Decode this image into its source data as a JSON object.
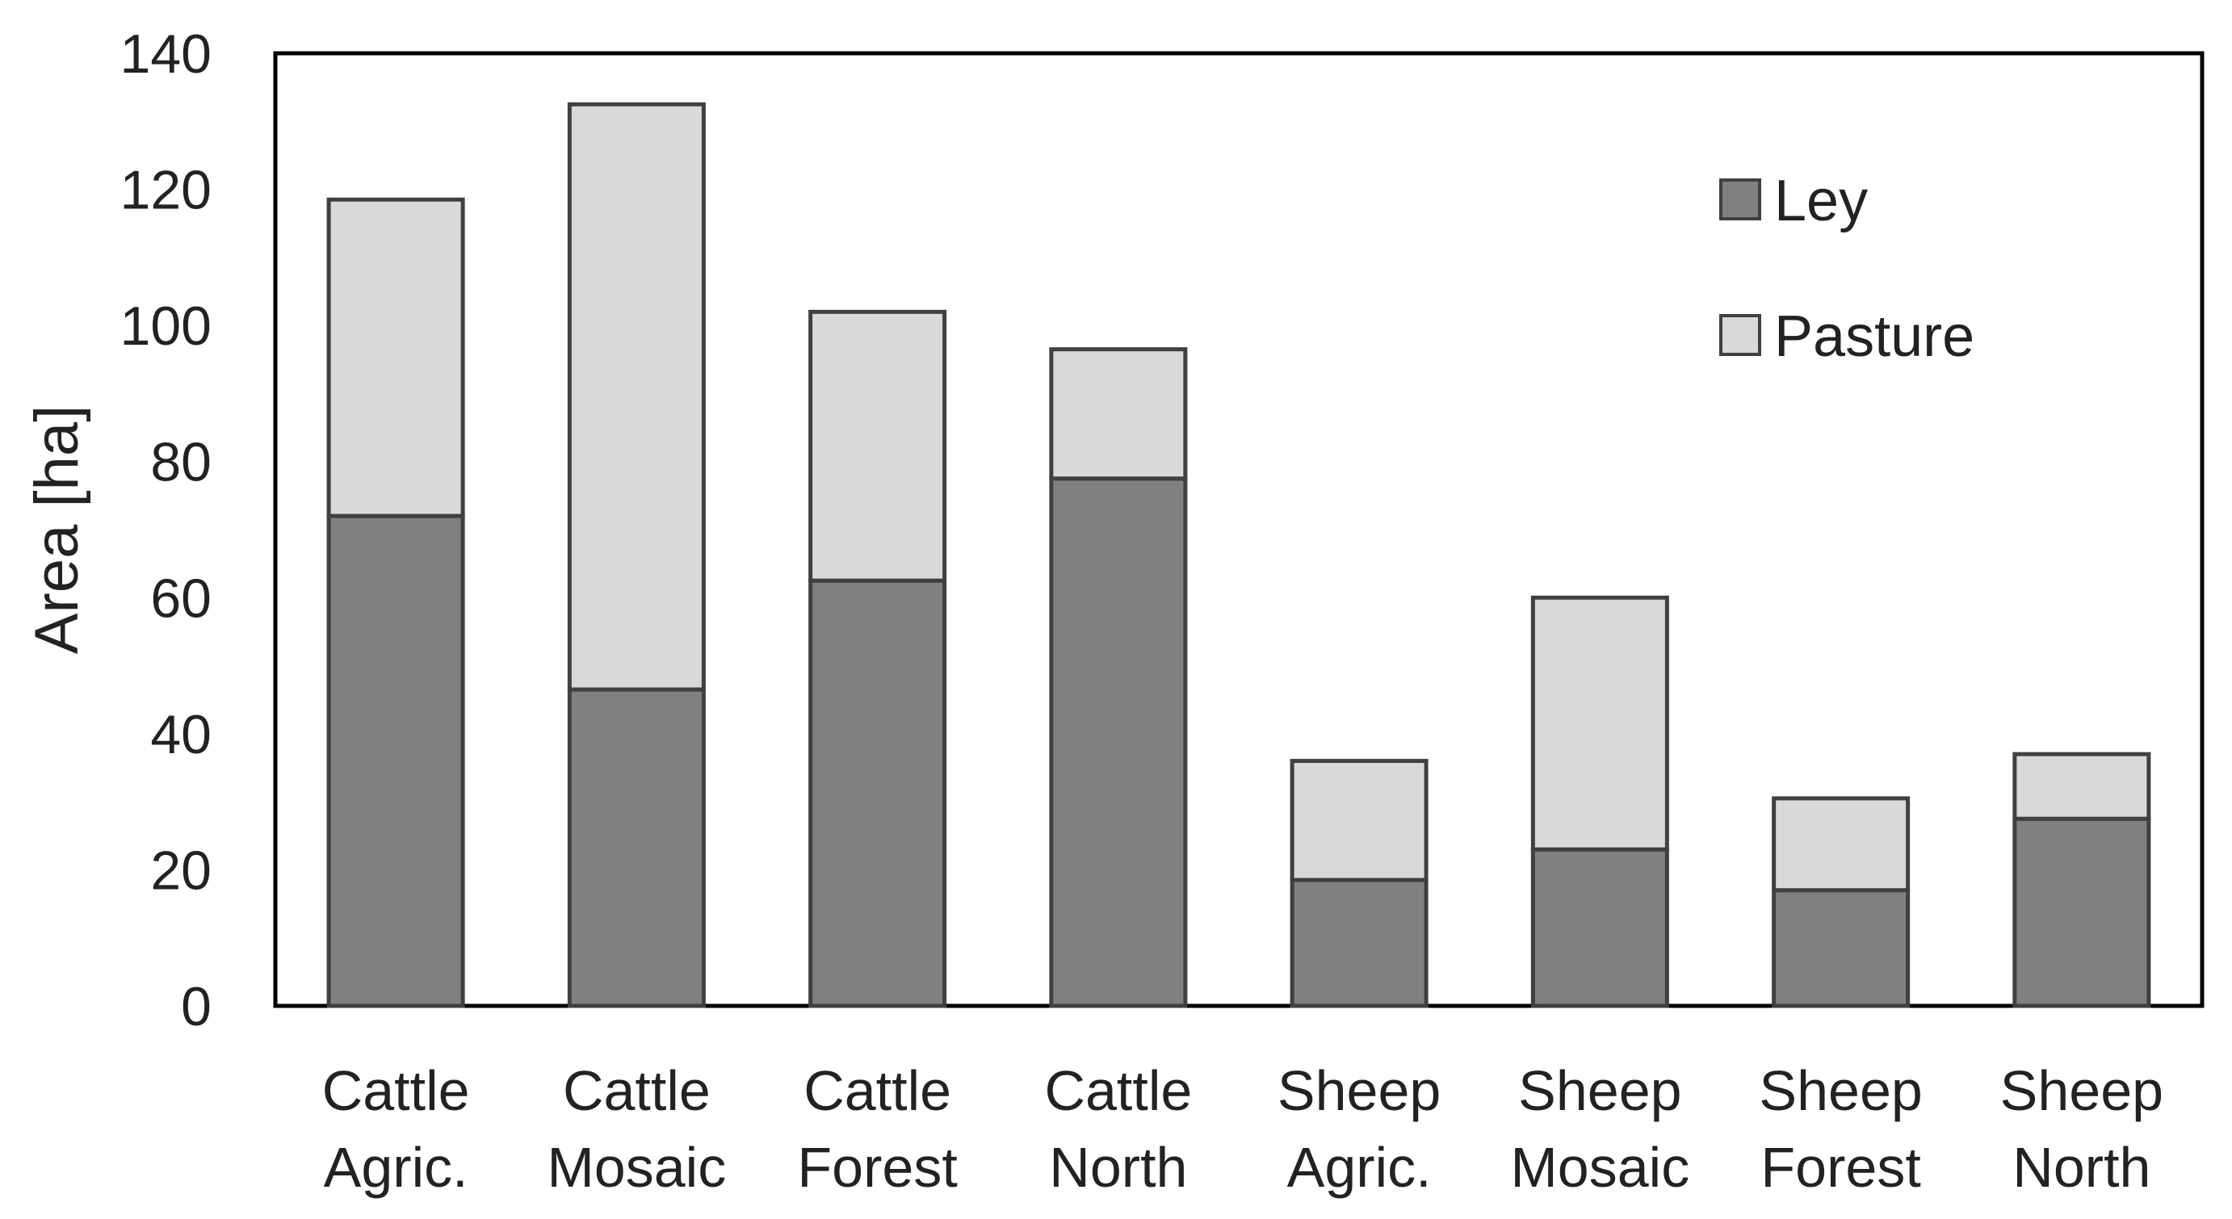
{
  "chart_data": {
    "type": "bar",
    "stacked": true,
    "title": "",
    "xlabel": "",
    "ylabel": "Area [ha]",
    "ylim": [
      0,
      140
    ],
    "yticks": [
      0,
      20,
      40,
      60,
      80,
      100,
      120,
      140
    ],
    "grid": false,
    "legend_position": "top-right",
    "categories": [
      [
        "Cattle",
        "Agric."
      ],
      [
        "Cattle",
        "Mosaic"
      ],
      [
        "Cattle",
        "Forest"
      ],
      [
        "Cattle",
        "North"
      ],
      [
        "Sheep",
        "Agric."
      ],
      [
        "Sheep",
        "Mosaic"
      ],
      [
        "Sheep",
        "Forest"
      ],
      [
        "Sheep",
        "North"
      ]
    ],
    "series": [
      {
        "name": "Ley",
        "color": "#808080",
        "values": [
          72,
          46.5,
          62.5,
          77.5,
          18.5,
          23,
          17,
          27.5
        ]
      },
      {
        "name": "Pasture",
        "color": "#d9d9d9",
        "values": [
          46.5,
          86,
          39.5,
          19,
          17.5,
          37,
          13.5,
          9.5
        ]
      }
    ]
  }
}
